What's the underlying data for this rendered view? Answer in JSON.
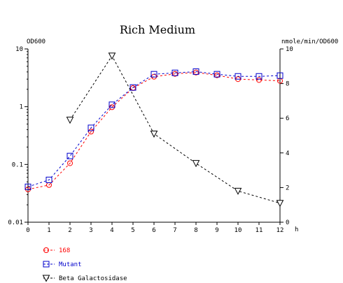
{
  "chart_data": {
    "type": "line",
    "title": "Rich Medium",
    "y_left_label": "OD600",
    "y_right_label": "nmole/min/OD600",
    "x_unit_label": "h",
    "x": [
      0,
      1,
      2,
      3,
      4,
      5,
      6,
      7,
      8,
      9,
      10,
      11,
      12
    ],
    "x_ticks": [
      "0",
      "1",
      "2",
      "3",
      "4",
      "5",
      "6",
      "7",
      "8",
      "9",
      "10",
      "11",
      "12"
    ],
    "y_left_ticks": [
      "10",
      "1",
      "0.1",
      "0.01"
    ],
    "y_left_range": [
      0.01,
      10
    ],
    "y_left_scale": "log",
    "y_right_ticks": [
      "10",
      "8",
      "6",
      "4",
      "2",
      "0"
    ],
    "y_right_range": [
      0,
      10
    ],
    "grid": false,
    "legend_position": "bottom-left",
    "series": [
      {
        "name": "168",
        "axis": "left",
        "color": "#ff0000",
        "marker": "circle",
        "x": [
          0,
          1,
          2,
          3,
          4,
          5,
          6,
          7,
          8,
          9,
          10,
          11,
          12
        ],
        "values": [
          0.037,
          0.044,
          0.105,
          0.37,
          0.98,
          2.1,
          3.3,
          3.7,
          3.9,
          3.5,
          3.0,
          2.9,
          2.8
        ]
      },
      {
        "name": "Mutant",
        "axis": "left",
        "color": "#0000cc",
        "marker": "square",
        "x": [
          0,
          1,
          2,
          3,
          4,
          5,
          6,
          7,
          8,
          9,
          10,
          11,
          12
        ],
        "values": [
          0.041,
          0.054,
          0.14,
          0.43,
          1.08,
          2.15,
          3.65,
          3.85,
          4.05,
          3.65,
          3.35,
          3.35,
          3.45
        ]
      },
      {
        "name": "Beta Galactosidase",
        "axis": "right",
        "color": "#000000",
        "marker": "triangle-down",
        "x": [
          2,
          4,
          6,
          8,
          10,
          12
        ],
        "values": [
          5.9,
          9.6,
          5.1,
          3.4,
          1.8,
          1.1
        ]
      }
    ]
  }
}
